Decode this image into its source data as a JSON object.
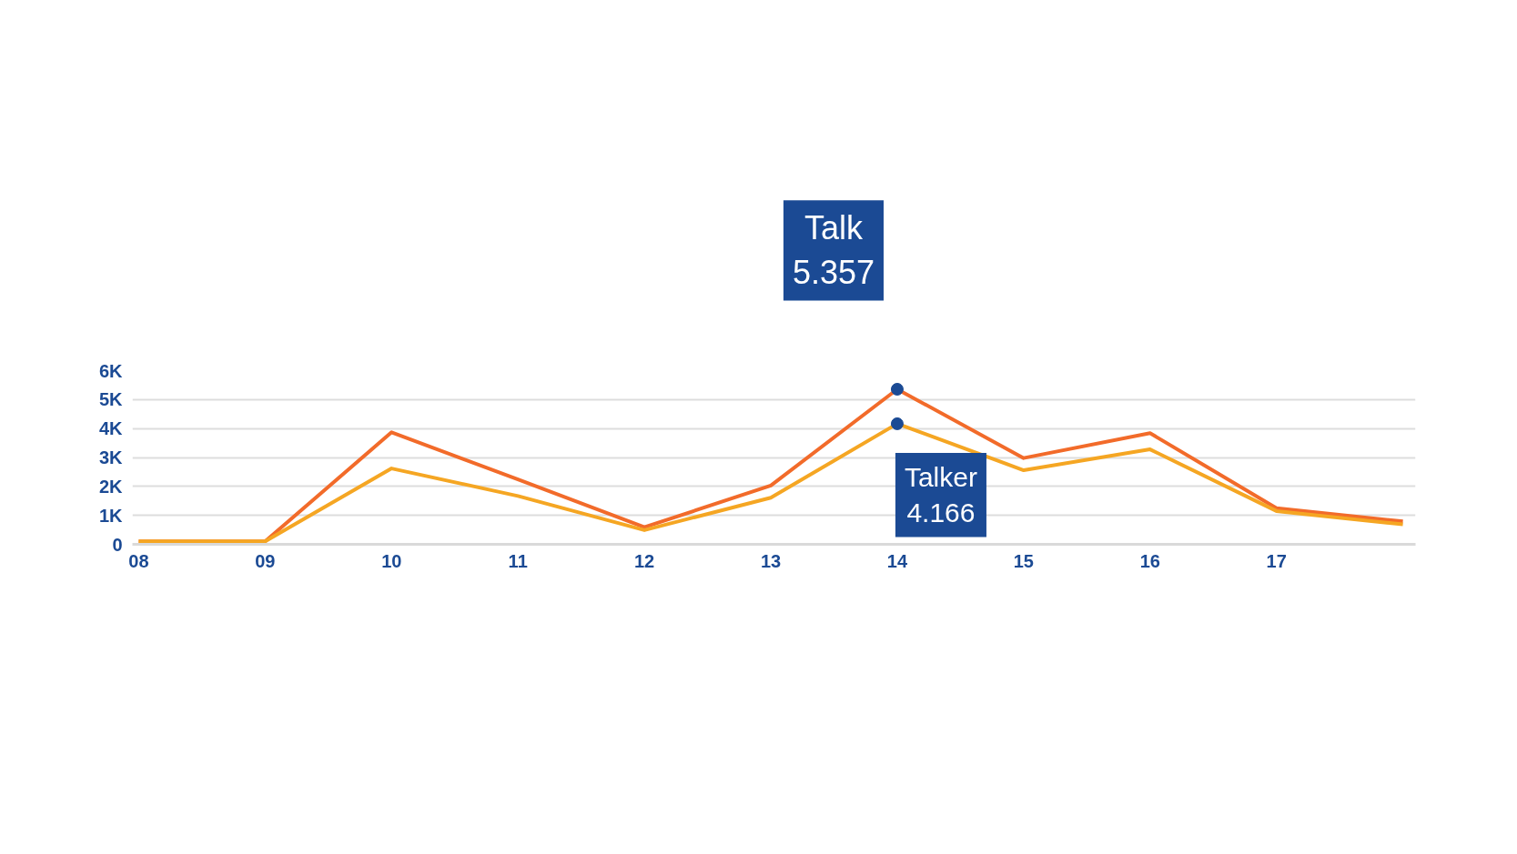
{
  "chart_data": {
    "type": "line",
    "categories": [
      "08",
      "09",
      "10",
      "11",
      "12",
      "13",
      "14",
      "15",
      "16",
      "17",
      null
    ],
    "series": [
      {
        "name": "Talk",
        "color": "#f26b2a",
        "values": [
          100,
          100,
          3870,
          2240,
          590,
          2030,
          5357,
          2980,
          3840,
          1250,
          790
        ]
      },
      {
        "name": "Talker",
        "color": "#f5a623",
        "values": [
          100,
          100,
          2620,
          1670,
          490,
          1610,
          4166,
          2560,
          3280,
          1150,
          690
        ]
      }
    ],
    "ylim": [
      0,
      6000
    ],
    "yticks": [
      0,
      {
        "value": 1000,
        "label": "1K"
      },
      {
        "value": 2000,
        "label": "2K"
      },
      {
        "value": 3000,
        "label": "3K"
      },
      {
        "value": 4000,
        "label": "4K"
      },
      {
        "value": 5000,
        "label": "5K"
      },
      {
        "value": 6000,
        "label": "6K"
      }
    ],
    "annotations": [
      "5.357",
      "4.166"
    ],
    "grid": "y",
    "line_style": "solid"
  }
}
